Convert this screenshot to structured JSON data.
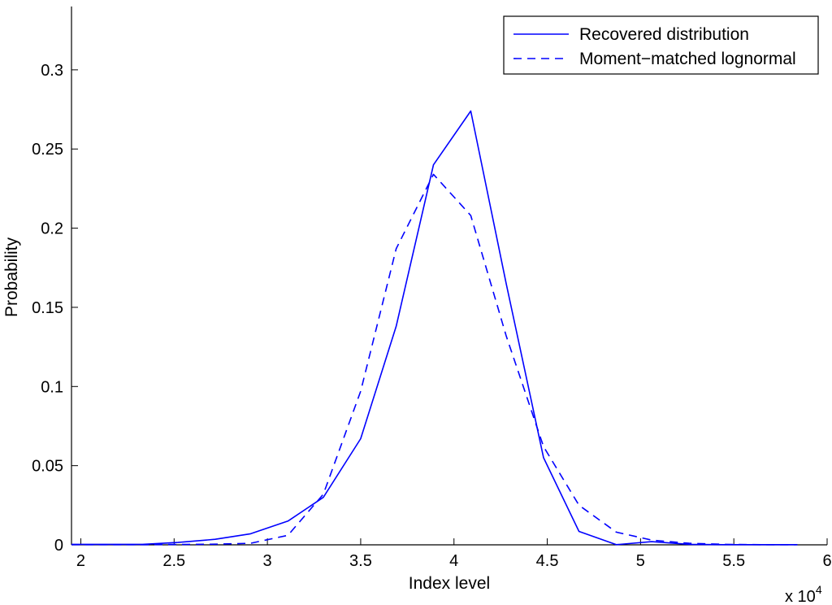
{
  "chart_data": {
    "type": "line",
    "xlabel": "Index level",
    "ylabel": "Probability",
    "x_multiplier_label": "x 10",
    "x_multiplier_exp": "4",
    "xlim": [
      1.95,
      6.0
    ],
    "ylim": [
      0,
      0.34
    ],
    "x_ticks": [
      2,
      2.5,
      3,
      3.5,
      4,
      4.5,
      5,
      5.5,
      6
    ],
    "x_tick_labels": [
      "2",
      "2.5",
      "3",
      "3.5",
      "4",
      "4.5",
      "5",
      "5.5",
      "6"
    ],
    "y_ticks": [
      0,
      0.05,
      0.1,
      0.15,
      0.2,
      0.25,
      0.3
    ],
    "y_tick_labels": [
      "0",
      "0.05",
      "0.1",
      "0.15",
      "0.2",
      "0.25",
      "0.3"
    ],
    "legend_position": "top-right",
    "grid": false,
    "series": [
      {
        "name": "Recovered distribution",
        "style": "solid",
        "color": "#0000ff",
        "x": [
          1.95,
          2.14,
          2.33,
          2.52,
          2.72,
          2.91,
          3.11,
          3.3,
          3.5,
          3.69,
          3.89,
          4.09,
          4.28,
          4.48,
          4.67,
          4.87,
          5.06,
          5.26,
          5.45,
          5.65,
          5.84
        ],
        "y": [
          0.0003,
          0.0003,
          0.0003,
          0.0015,
          0.0035,
          0.007,
          0.015,
          0.03,
          0.067,
          0.138,
          0.24,
          0.274,
          0.165,
          0.055,
          0.0085,
          0.0001,
          0.002,
          0.0003,
          0.0001,
          0.0001,
          0.0001
        ]
      },
      {
        "name": "Moment−matched lognormal",
        "style": "dashed",
        "color": "#0000ff",
        "x": [
          1.95,
          2.14,
          2.33,
          2.52,
          2.72,
          2.91,
          3.11,
          3.3,
          3.5,
          3.69,
          3.89,
          4.09,
          4.28,
          4.48,
          4.67,
          4.87,
          5.06,
          5.26,
          5.45,
          5.65,
          5.84
        ],
        "y": [
          0.0001,
          0.0001,
          0.0001,
          0.0002,
          0.0004,
          0.001,
          0.006,
          0.032,
          0.097,
          0.187,
          0.234,
          0.208,
          0.132,
          0.062,
          0.025,
          0.008,
          0.003,
          0.001,
          0.0003,
          0.0001,
          0.0001
        ]
      }
    ]
  }
}
